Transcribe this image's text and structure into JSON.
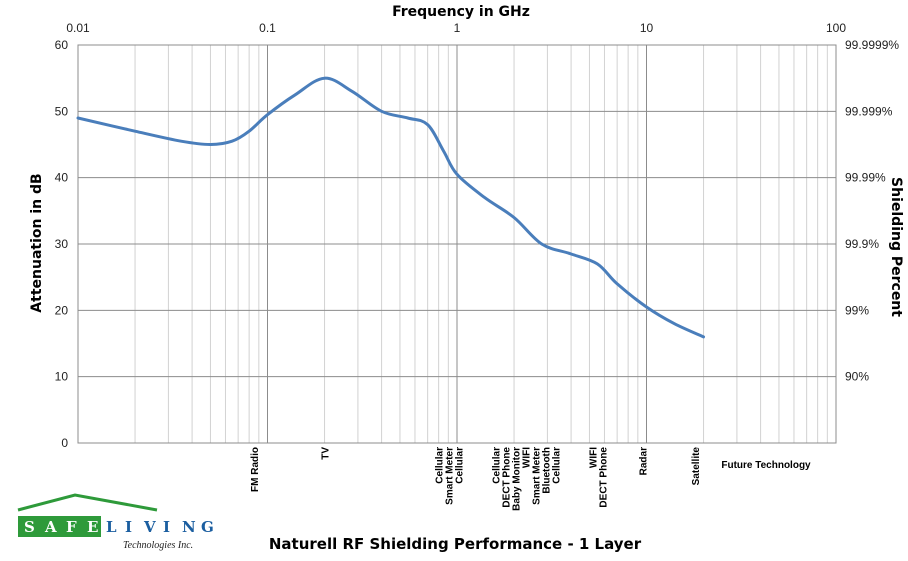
{
  "chart_data": {
    "type": "line",
    "title": "Naturell RF Shielding Performance - 1 Layer",
    "xlabel": "Frequency in GHz",
    "ylabel": "Attenuation in dB",
    "y2label": "Shielding Percent",
    "x_scale": "log",
    "xlim": [
      0.01,
      100
    ],
    "ylim": [
      0,
      60
    ],
    "grid": true,
    "x_ticks": [
      "0.01",
      "0.1",
      "1",
      "10",
      "100"
    ],
    "y_ticks": [
      "0",
      "10",
      "20",
      "30",
      "40",
      "50",
      "60"
    ],
    "y2_ticks": [
      "90%",
      "99%",
      "99.9%",
      "99.99%",
      "99.999%",
      "99.9999%"
    ],
    "series": [
      {
        "color": "#4a7ebb",
        "x": [
          0.01,
          0.02,
          0.035,
          0.05,
          0.065,
          0.08,
          0.1,
          0.14,
          0.2,
          0.28,
          0.4,
          0.55,
          0.7,
          0.85,
          1.0,
          1.4,
          2.0,
          2.8,
          4.0,
          5.5,
          7.0,
          10.0,
          14.0,
          20.0
        ],
        "y": [
          49,
          47,
          45.5,
          45,
          45.5,
          47,
          49.5,
          52.5,
          55,
          53,
          50,
          49,
          48,
          44,
          40.5,
          37,
          34,
          30,
          28.5,
          27,
          24,
          20.5,
          18,
          16
        ]
      }
    ],
    "annotations": [
      {
        "x": 0.085,
        "lines": [
          "FM Radio"
        ]
      },
      {
        "x": 0.2,
        "lines": [
          "TV"
        ]
      },
      {
        "x": 0.9,
        "lines": [
          "Cellular",
          "Smart Meter",
          "Cellular"
        ]
      },
      {
        "x": 2.3,
        "lines": [
          "Cellular",
          "DECT Phone",
          "Baby Monitor",
          "WIFI",
          "Smart Meter",
          "Bluetooth",
          "Cellular"
        ]
      },
      {
        "x": 5.5,
        "lines": [
          "WIFI",
          "DECT Phone"
        ]
      },
      {
        "x": 9.5,
        "lines": [
          "Radar"
        ]
      },
      {
        "x": 18,
        "lines": [
          "Satellite"
        ]
      }
    ],
    "future_label": "Future Technology"
  },
  "logo": {
    "letters_left": [
      "S",
      "A",
      "F",
      "E"
    ],
    "letters_right": [
      "L",
      "I",
      "V",
      "I",
      "N",
      "G"
    ],
    "subtitle": "Technologies Inc.",
    "colors": {
      "green": "#2e9a3a",
      "blue": "#1b5ea0"
    }
  }
}
